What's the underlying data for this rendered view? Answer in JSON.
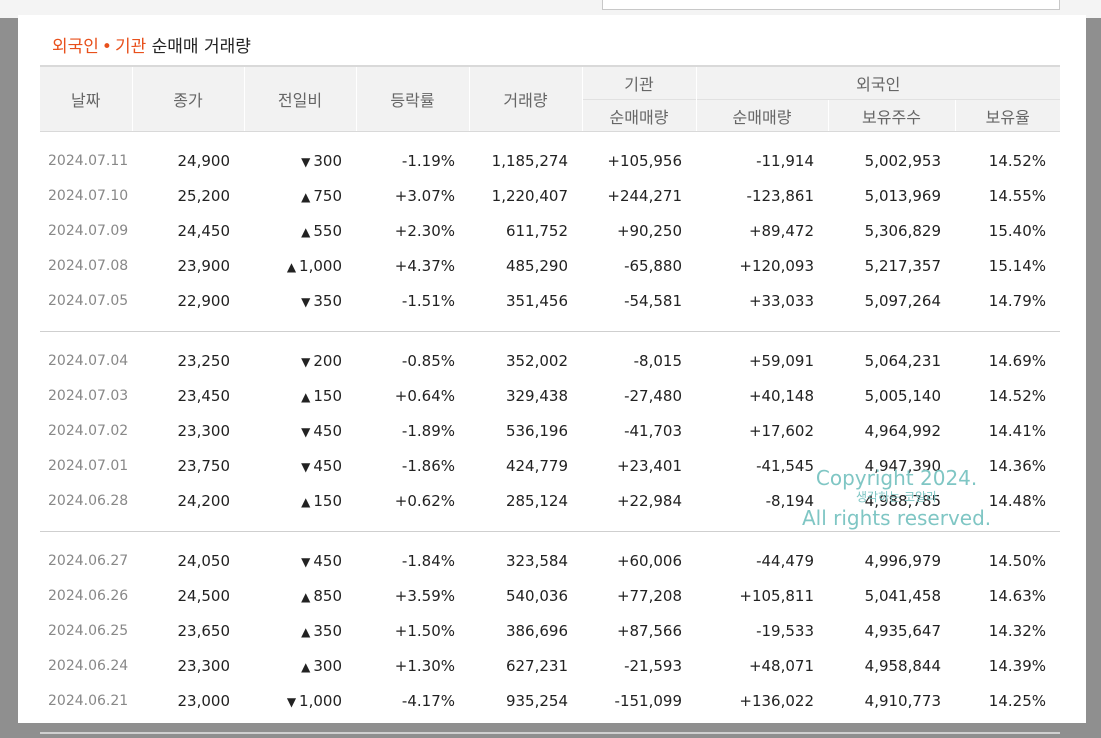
{
  "title": {
    "highlight1": "외국인",
    "dot": "•",
    "highlight2": "기관",
    "rest": "순매매 거래량"
  },
  "headers": {
    "date": "날짜",
    "close": "종가",
    "change": "전일비",
    "rate": "등락률",
    "volume": "거래량",
    "inst_group": "기관",
    "foreign_group": "외국인",
    "inst_net": "순매매량",
    "foreign_net": "순매매량",
    "holdings": "보유주수",
    "ratio": "보유율"
  },
  "groups": [
    [
      {
        "date": "2024.07.11",
        "close": "24,900",
        "dir": "down",
        "change": "300",
        "rate": "-1.19%",
        "volume": "1,185,274",
        "inst": "+105,956",
        "foreign": "-11,914",
        "holdings": "5,002,953",
        "ratio": "14.52%"
      },
      {
        "date": "2024.07.10",
        "close": "25,200",
        "dir": "up",
        "change": "750",
        "rate": "+3.07%",
        "volume": "1,220,407",
        "inst": "+244,271",
        "foreign": "-123,861",
        "holdings": "5,013,969",
        "ratio": "14.55%"
      },
      {
        "date": "2024.07.09",
        "close": "24,450",
        "dir": "up",
        "change": "550",
        "rate": "+2.30%",
        "volume": "611,752",
        "inst": "+90,250",
        "foreign": "+89,472",
        "holdings": "5,306,829",
        "ratio": "15.40%"
      },
      {
        "date": "2024.07.08",
        "close": "23,900",
        "dir": "up",
        "change": "1,000",
        "rate": "+4.37%",
        "volume": "485,290",
        "inst": "-65,880",
        "foreign": "+120,093",
        "holdings": "5,217,357",
        "ratio": "15.14%"
      },
      {
        "date": "2024.07.05",
        "close": "22,900",
        "dir": "down",
        "change": "350",
        "rate": "-1.51%",
        "volume": "351,456",
        "inst": "-54,581",
        "foreign": "+33,033",
        "holdings": "5,097,264",
        "ratio": "14.79%"
      }
    ],
    [
      {
        "date": "2024.07.04",
        "close": "23,250",
        "dir": "down",
        "change": "200",
        "rate": "-0.85%",
        "volume": "352,002",
        "inst": "-8,015",
        "foreign": "+59,091",
        "holdings": "5,064,231",
        "ratio": "14.69%"
      },
      {
        "date": "2024.07.03",
        "close": "23,450",
        "dir": "up",
        "change": "150",
        "rate": "+0.64%",
        "volume": "329,438",
        "inst": "-27,480",
        "foreign": "+40,148",
        "holdings": "5,005,140",
        "ratio": "14.52%"
      },
      {
        "date": "2024.07.02",
        "close": "23,300",
        "dir": "down",
        "change": "450",
        "rate": "-1.89%",
        "volume": "536,196",
        "inst": "-41,703",
        "foreign": "+17,602",
        "holdings": "4,964,992",
        "ratio": "14.41%"
      },
      {
        "date": "2024.07.01",
        "close": "23,750",
        "dir": "down",
        "change": "450",
        "rate": "-1.86%",
        "volume": "424,779",
        "inst": "+23,401",
        "foreign": "-41,545",
        "holdings": "4,947,390",
        "ratio": "14.36%"
      },
      {
        "date": "2024.06.28",
        "close": "24,200",
        "dir": "up",
        "change": "150",
        "rate": "+0.62%",
        "volume": "285,124",
        "inst": "+22,984",
        "foreign": "-8,194",
        "holdings": "4,988,785",
        "ratio": "14.48%"
      }
    ],
    [
      {
        "date": "2024.06.27",
        "close": "24,050",
        "dir": "down",
        "change": "450",
        "rate": "-1.84%",
        "volume": "323,584",
        "inst": "+60,006",
        "foreign": "-44,479",
        "holdings": "4,996,979",
        "ratio": "14.50%"
      },
      {
        "date": "2024.06.26",
        "close": "24,500",
        "dir": "up",
        "change": "850",
        "rate": "+3.59%",
        "volume": "540,036",
        "inst": "+77,208",
        "foreign": "+105,811",
        "holdings": "5,041,458",
        "ratio": "14.63%"
      },
      {
        "date": "2024.06.25",
        "close": "23,650",
        "dir": "up",
        "change": "350",
        "rate": "+1.50%",
        "volume": "386,696",
        "inst": "+87,566",
        "foreign": "-19,533",
        "holdings": "4,935,647",
        "ratio": "14.32%"
      },
      {
        "date": "2024.06.24",
        "close": "23,300",
        "dir": "up",
        "change": "300",
        "rate": "+1.30%",
        "volume": "627,231",
        "inst": "-21,593",
        "foreign": "+48,071",
        "holdings": "4,958,844",
        "ratio": "14.39%"
      },
      {
        "date": "2024.06.21",
        "close": "23,000",
        "dir": "down",
        "change": "1,000",
        "rate": "-4.17%",
        "volume": "935,254",
        "inst": "-151,099",
        "foreign": "+136,022",
        "holdings": "4,910,773",
        "ratio": "14.25%"
      }
    ]
  ],
  "watermark": {
    "line1": "Copyright 2024.",
    "line2": "생각하는 코알라",
    "line3": "All rights reserved."
  },
  "colors": {
    "up": "#e0121b",
    "down": "#1f6fd1",
    "accent": "#e8501c",
    "watermark": "#7fc6c4"
  },
  "icons": {
    "up": "triangle-up-icon",
    "down": "triangle-down-icon"
  }
}
